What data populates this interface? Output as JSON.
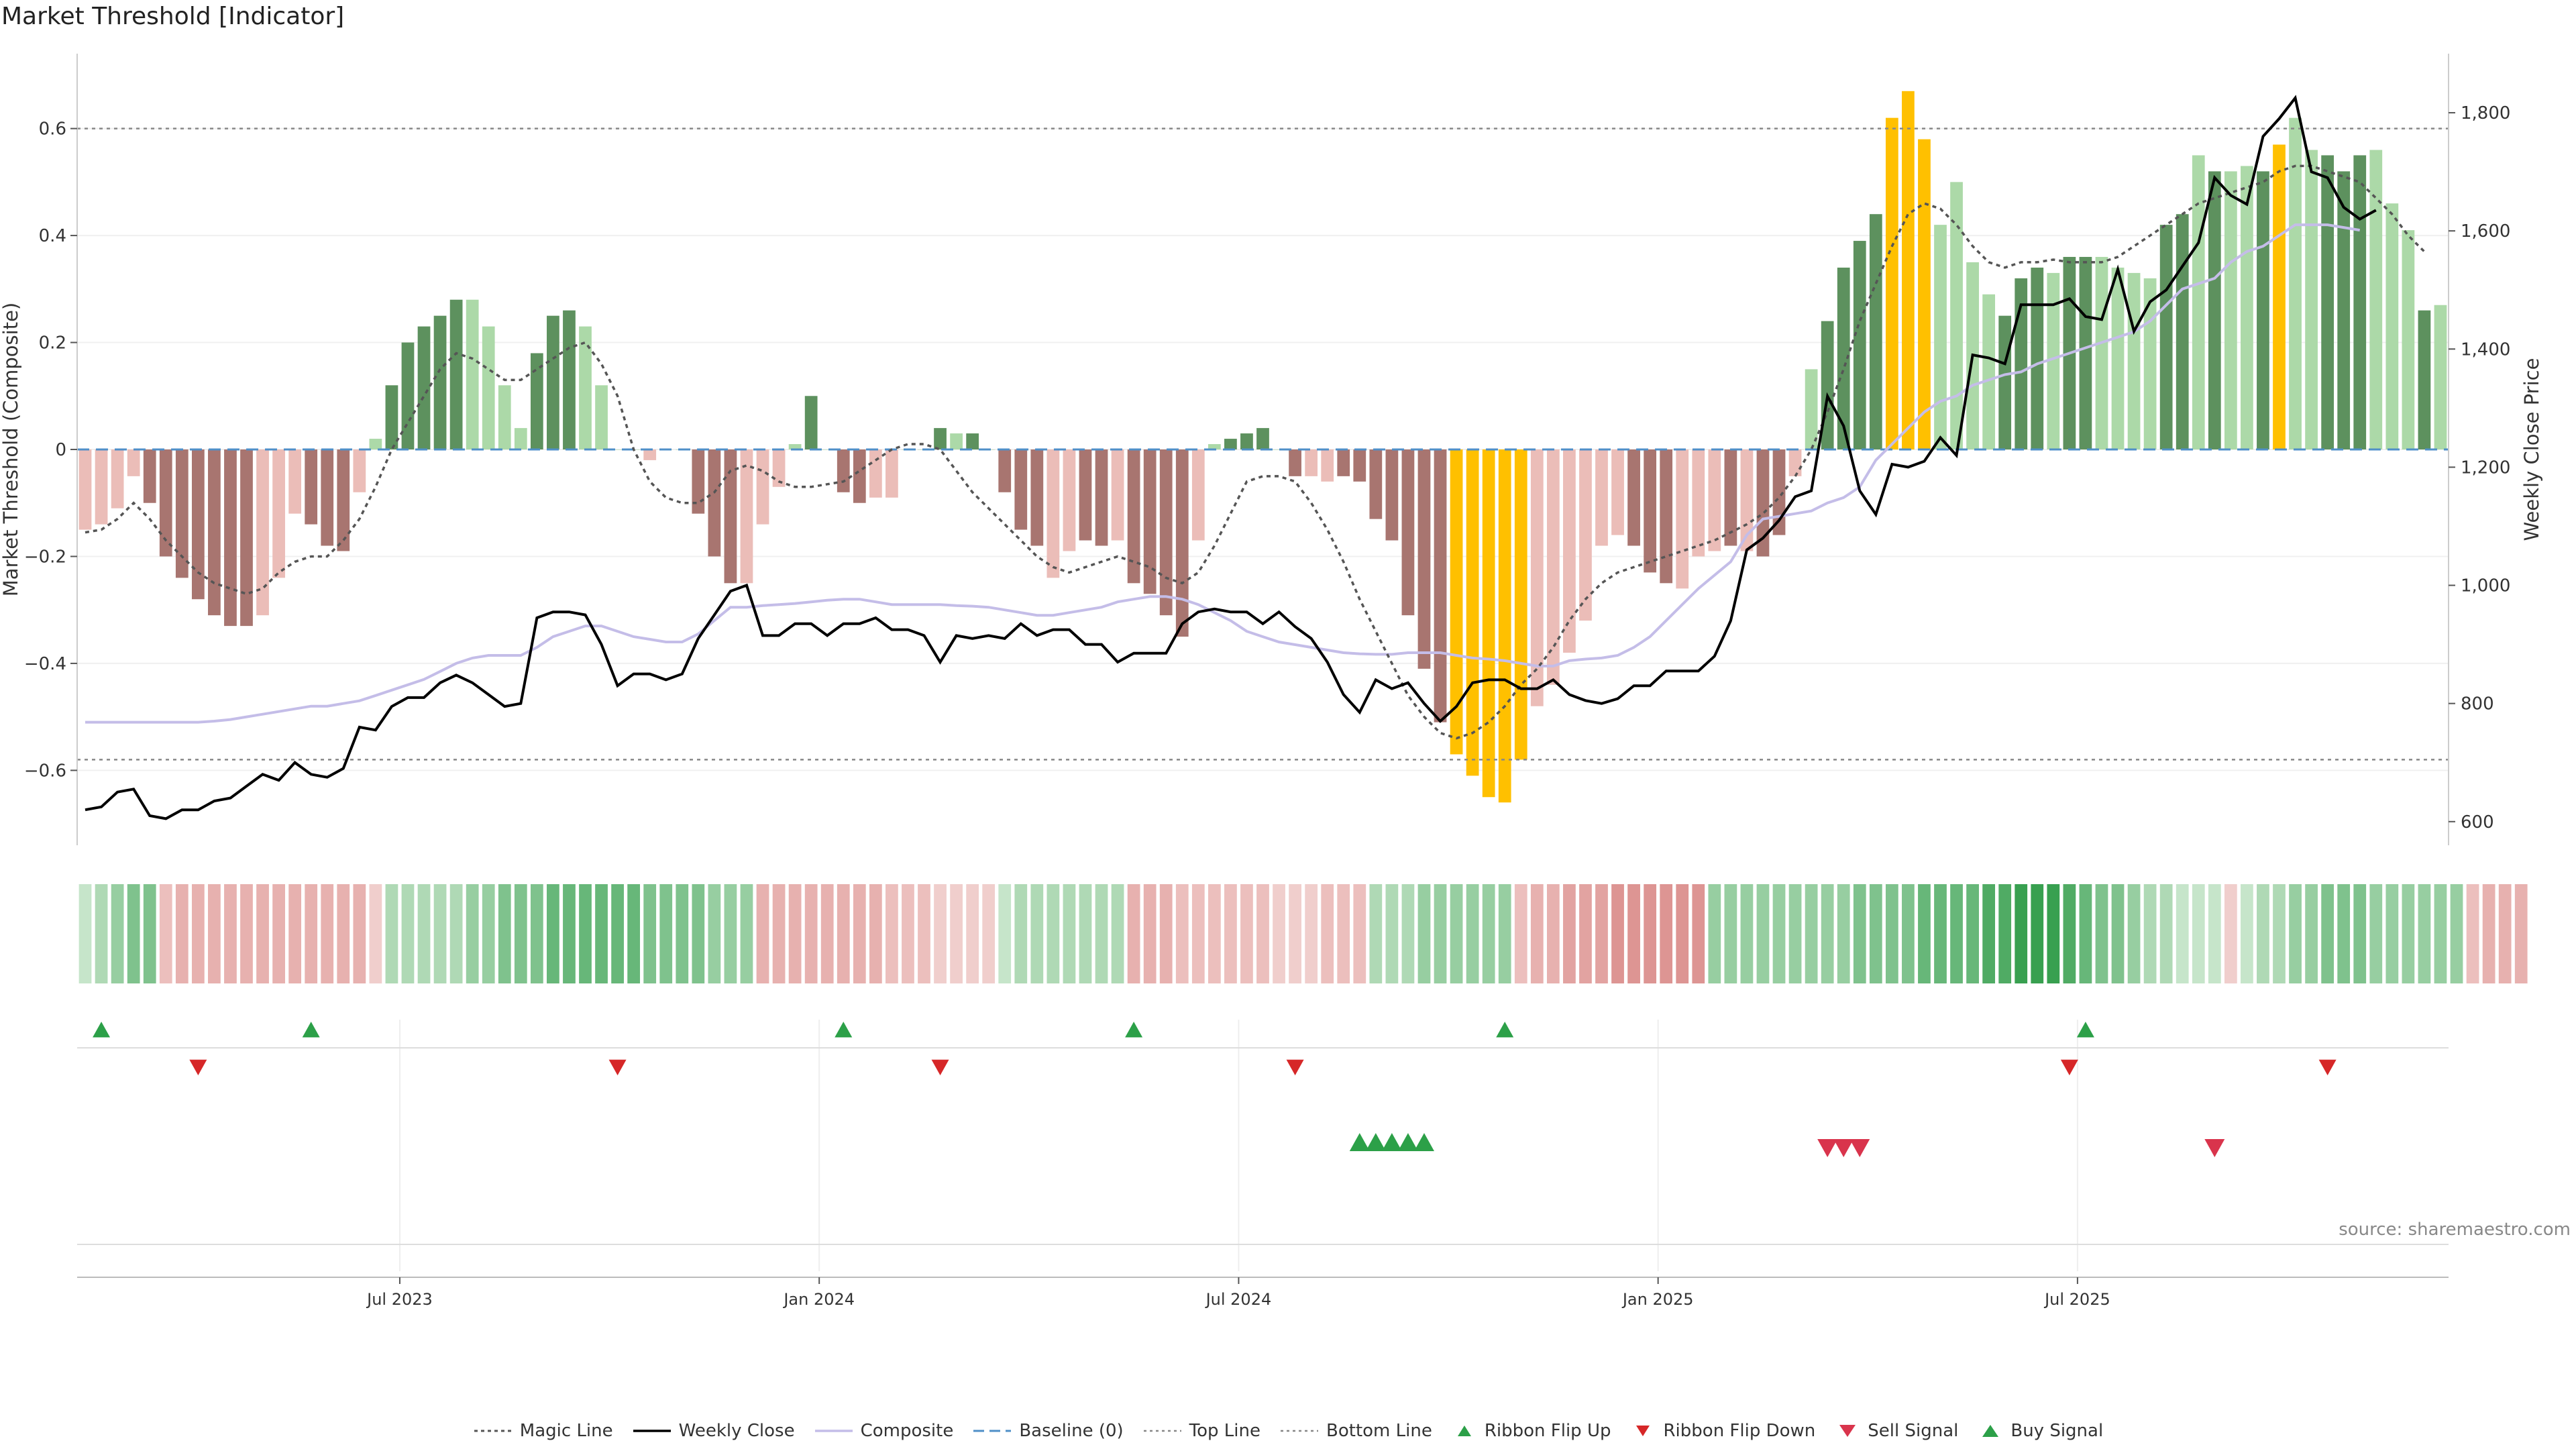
{
  "title": "Market Threshold [Indicator]",
  "source": "source: sharemaestro.com",
  "colors": {
    "bar_neg_dark": "#a87570",
    "bar_neg_light": "#ebbdb8",
    "bar_pos_dark": "#5d915e",
    "bar_pos_light": "#acd9a8",
    "bar_extreme": "#ffc000",
    "weekly_close": "#000000",
    "composite": "#c4bde8",
    "magic_line": "#555555",
    "baseline": "#4f8fc8",
    "threshold_lines": "#888888",
    "flip_up": "#2ca048",
    "flip_down": "#d62728",
    "buy": "#2ca048",
    "sell": "#d9344c"
  },
  "chart_data": {
    "type": "bar",
    "start_date": "2023-01-02",
    "interval": "weekly",
    "left_axis": {
      "label": "Market Threshold (Composite)",
      "range": [
        -0.74,
        0.74
      ],
      "ticks": [
        -0.6,
        -0.4,
        -0.2,
        0,
        0.2,
        0.4,
        0.6
      ],
      "tick_labels": [
        "−0.6",
        "−0.4",
        "−0.2",
        "0",
        "0.2",
        "0.4",
        "0.6"
      ]
    },
    "right_axis": {
      "label": "Weekly Close Price",
      "range": [
        560,
        1900
      ],
      "ticks": [
        600,
        800,
        1000,
        1200,
        1400,
        1600,
        1800
      ],
      "tick_labels": [
        "600",
        "800",
        "1,000",
        "1,200",
        "1,400",
        "1,600",
        "1,800"
      ]
    },
    "x_ticks": [
      {
        "label": "Jul 2023",
        "week": 20
      },
      {
        "label": "Jan 2024",
        "week": 46
      },
      {
        "label": "Jul 2024",
        "week": 72
      },
      {
        "label": "Jan 2025",
        "week": 98
      },
      {
        "label": "Jul 2025",
        "week": 124
      }
    ],
    "top_line": 0.6,
    "bottom_line": -0.58,
    "composite_bars": [
      -0.15,
      -0.14,
      -0.11,
      -0.05,
      -0.1,
      -0.2,
      -0.24,
      -0.28,
      -0.31,
      -0.33,
      -0.33,
      -0.31,
      -0.24,
      -0.12,
      -0.14,
      -0.18,
      -0.19,
      -0.08,
      0.02,
      0.12,
      0.2,
      0.23,
      0.25,
      0.28,
      0.28,
      0.23,
      0.12,
      0.04,
      0.18,
      0.25,
      0.26,
      0.23,
      0.12,
      0,
      0,
      -0.02,
      0,
      0,
      -0.12,
      -0.2,
      -0.25,
      -0.25,
      -0.14,
      -0.07,
      0.01,
      0.1,
      0,
      -0.08,
      -0.1,
      -0.09,
      -0.09,
      0,
      0,
      0.04,
      0.03,
      0.03,
      0,
      -0.08,
      -0.15,
      -0.18,
      -0.24,
      -0.19,
      -0.17,
      -0.18,
      -0.17,
      -0.25,
      -0.27,
      -0.31,
      -0.35,
      -0.17,
      0.01,
      0.02,
      0.03,
      0.04,
      0,
      -0.05,
      -0.05,
      -0.06,
      -0.05,
      -0.06,
      -0.13,
      -0.17,
      -0.31,
      -0.41,
      -0.51,
      -0.57,
      -0.61,
      -0.65,
      -0.66,
      -0.58,
      -0.48,
      -0.44,
      -0.38,
      -0.32,
      -0.18,
      -0.16,
      -0.18,
      -0.23,
      -0.25,
      -0.26,
      -0.2,
      -0.19,
      -0.18,
      -0.19,
      -0.2,
      -0.16,
      -0.05,
      0.15,
      0.24,
      0.34,
      0.39,
      0.44,
      0.62,
      0.67,
      0.58,
      0.42,
      0.5,
      0.35,
      0.29,
      0.25,
      0.32,
      0.34,
      0.33,
      0.36,
      0.36,
      0.36,
      0.34,
      0.33,
      0.32,
      0.42,
      0.44,
      0.55,
      0.52,
      0.52,
      0.53,
      0.52,
      0.57,
      0.62,
      0.56,
      0.55,
      0.52,
      0.55,
      0.56,
      0.46,
      0.41,
      0.26,
      0.27
    ],
    "bar_styles": [
      "nl",
      "nl",
      "nl",
      "nl",
      "nd",
      "nd",
      "nd",
      "nd",
      "nd",
      "nd",
      "nd",
      "nl",
      "nl",
      "nl",
      "nd",
      "nd",
      "nd",
      "nl",
      "pl",
      "pd",
      "pd",
      "pd",
      "pd",
      "pd",
      "pl",
      "pl",
      "pl",
      "pl",
      "pd",
      "pd",
      "pd",
      "pl",
      "pl",
      "pl",
      "pl",
      "nl",
      "pl",
      "pl",
      "nd",
      "nd",
      "nd",
      "nl",
      "nl",
      "nl",
      "pl",
      "pd",
      "pl",
      "nd",
      "nd",
      "nl",
      "nl",
      "pl",
      "pl",
      "pd",
      "pl",
      "pd",
      "pl",
      "nd",
      "nd",
      "nd",
      "nl",
      "nl",
      "nd",
      "nd",
      "nl",
      "nd",
      "nd",
      "nd",
      "nd",
      "nl",
      "pl",
      "pd",
      "pd",
      "pd",
      "pl",
      "nd",
      "nl",
      "nl",
      "nd",
      "nd",
      "nd",
      "nd",
      "nd",
      "nd",
      "nd",
      "x",
      "x",
      "x",
      "x",
      "x",
      "nl",
      "nl",
      "nl",
      "nl",
      "nl",
      "nl",
      "nd",
      "nd",
      "nd",
      "nl",
      "nl",
      "nl",
      "nd",
      "nl",
      "nd",
      "nd",
      "nl",
      "pl",
      "pd",
      "pd",
      "pd",
      "pd",
      "x",
      "x",
      "x",
      "pl",
      "pl",
      "pl",
      "pl",
      "pd",
      "pd",
      "pd",
      "pl",
      "pd",
      "pd",
      "pl",
      "pl",
      "pl",
      "pl",
      "pd",
      "pd",
      "pl",
      "pd",
      "pl",
      "pl",
      "pd",
      "x",
      "pl",
      "pl",
      "pd",
      "pd",
      "pd",
      "pl",
      "pl",
      "pl",
      "pd"
    ],
    "weekly_close": [
      620,
      625,
      650,
      655,
      610,
      605,
      620,
      620,
      635,
      640,
      660,
      680,
      670,
      700,
      680,
      675,
      690,
      760,
      755,
      795,
      810,
      810,
      835,
      848,
      835,
      815,
      795,
      800,
      945,
      955,
      955,
      950,
      900,
      830,
      850,
      850,
      840,
      850,
      910,
      950,
      990,
      1000,
      915,
      915,
      935,
      935,
      915,
      935,
      935,
      945,
      925,
      925,
      915,
      870,
      915,
      910,
      915,
      910,
      935,
      915,
      925,
      925,
      900,
      900,
      870,
      885,
      885,
      885,
      935,
      955,
      960,
      955,
      955,
      935,
      955,
      930,
      910,
      870,
      815,
      785,
      840,
      825,
      835,
      800,
      770,
      795,
      835,
      840,
      840,
      825,
      825,
      840,
      815,
      805,
      800,
      808,
      830,
      830,
      855,
      855,
      855,
      880,
      940,
      1060,
      1080,
      1110,
      1150,
      1160,
      1320,
      1270,
      1160,
      1120,
      1205,
      1200,
      1210,
      1250,
      1220,
      1390,
      1385,
      1375,
      1475,
      1475,
      1475,
      1485,
      1455,
      1450,
      1535,
      1430,
      1480,
      1500,
      1540,
      1580,
      1690,
      1660,
      1645,
      1760,
      1790,
      1825,
      1700,
      1690,
      1640,
      1620,
      1635
    ],
    "composite_line": [
      -0.51,
      -0.51,
      -0.51,
      -0.51,
      -0.51,
      -0.51,
      -0.51,
      -0.51,
      -0.508,
      -0.505,
      -0.5,
      -0.495,
      -0.49,
      -0.485,
      -0.48,
      -0.48,
      -0.475,
      -0.47,
      -0.46,
      -0.45,
      -0.44,
      -0.43,
      -0.415,
      -0.4,
      -0.39,
      -0.385,
      -0.385,
      -0.385,
      -0.37,
      -0.35,
      -0.34,
      -0.33,
      -0.33,
      -0.34,
      -0.35,
      -0.355,
      -0.36,
      -0.36,
      -0.345,
      -0.32,
      -0.295,
      -0.295,
      -0.292,
      -0.29,
      -0.288,
      -0.285,
      -0.282,
      -0.28,
      -0.28,
      -0.285,
      -0.29,
      -0.29,
      -0.29,
      -0.29,
      -0.292,
      -0.293,
      -0.295,
      -0.3,
      -0.305,
      -0.31,
      -0.31,
      -0.305,
      -0.3,
      -0.295,
      -0.285,
      -0.28,
      -0.275,
      -0.275,
      -0.28,
      -0.29,
      -0.305,
      -0.32,
      -0.34,
      -0.35,
      -0.36,
      -0.365,
      -0.37,
      -0.375,
      -0.38,
      -0.382,
      -0.383,
      -0.383,
      -0.38,
      -0.38,
      -0.38,
      -0.385,
      -0.39,
      -0.392,
      -0.395,
      -0.4,
      -0.405,
      -0.405,
      -0.395,
      -0.392,
      -0.39,
      -0.385,
      -0.37,
      -0.35,
      -0.32,
      -0.29,
      -0.26,
      -0.235,
      -0.21,
      -0.16,
      -0.13,
      -0.125,
      -0.12,
      -0.115,
      -0.1,
      -0.09,
      -0.07,
      -0.02,
      0.01,
      0.04,
      0.07,
      0.09,
      0.1,
      0.12,
      0.13,
      0.14,
      0.145,
      0.16,
      0.17,
      0.18,
      0.19,
      0.2,
      0.21,
      0.22,
      0.24,
      0.27,
      0.3,
      0.31,
      0.32,
      0.35,
      0.37,
      0.38,
      0.4,
      0.42,
      0.42,
      0.42,
      0.415,
      0.41
    ],
    "magic_line": [
      -0.155,
      -0.15,
      -0.13,
      -0.1,
      -0.13,
      -0.17,
      -0.2,
      -0.23,
      -0.25,
      -0.26,
      -0.27,
      -0.26,
      -0.23,
      -0.21,
      -0.2,
      -0.2,
      -0.17,
      -0.13,
      -0.07,
      0,
      0.05,
      0.1,
      0.15,
      0.18,
      0.17,
      0.15,
      0.13,
      0.13,
      0.15,
      0.17,
      0.19,
      0.2,
      0.16,
      0.1,
      0,
      -0.06,
      -0.09,
      -0.1,
      -0.1,
      -0.08,
      -0.04,
      -0.03,
      -0.04,
      -0.06,
      -0.07,
      -0.07,
      -0.065,
      -0.06,
      -0.04,
      -0.02,
      0,
      0.01,
      0.01,
      0,
      -0.04,
      -0.08,
      -0.11,
      -0.14,
      -0.17,
      -0.2,
      -0.22,
      -0.23,
      -0.22,
      -0.21,
      -0.2,
      -0.21,
      -0.22,
      -0.24,
      -0.25,
      -0.23,
      -0.18,
      -0.12,
      -0.06,
      -0.05,
      -0.05,
      -0.06,
      -0.1,
      -0.15,
      -0.21,
      -0.28,
      -0.34,
      -0.4,
      -0.46,
      -0.5,
      -0.53,
      -0.54,
      -0.53,
      -0.51,
      -0.48,
      -0.44,
      -0.41,
      -0.37,
      -0.32,
      -0.28,
      -0.25,
      -0.23,
      -0.22,
      -0.21,
      -0.2,
      -0.19,
      -0.18,
      -0.17,
      -0.155,
      -0.14,
      -0.12,
      -0.09,
      -0.05,
      0,
      0.07,
      0.15,
      0.24,
      0.31,
      0.38,
      0.44,
      0.46,
      0.45,
      0.42,
      0.38,
      0.35,
      0.34,
      0.35,
      0.35,
      0.355,
      0.35,
      0.35,
      0.35,
      0.36,
      0.38,
      0.4,
      0.42,
      0.44,
      0.46,
      0.47,
      0.48,
      0.49,
      0.5,
      0.52,
      0.53,
      0.53,
      0.52,
      0.51,
      0.5,
      0.47,
      0.44,
      0.4,
      0.37
    ],
    "ribbon_strength": [
      1,
      2,
      3,
      4,
      4,
      -2,
      -3,
      -3,
      -3,
      -3,
      -3,
      -3,
      -3,
      -3,
      -3,
      -3,
      -3,
      -3,
      -1,
      2,
      2,
      2,
      2,
      2,
      3,
      3,
      4,
      4,
      4,
      5,
      5,
      5,
      5,
      5,
      5,
      4,
      4,
      4,
      4,
      3,
      3,
      3,
      -3,
      -3,
      -3,
      -3,
      -3,
      -3,
      -3,
      -3,
      -2,
      -2,
      -2,
      -1,
      -1,
      -1,
      -1,
      1,
      2,
      2,
      2,
      2,
      2,
      2,
      2,
      -3,
      -3,
      -3,
      -2,
      -2,
      -2,
      -2,
      -2,
      -2,
      -1,
      -1,
      -1,
      -2,
      -2,
      -2,
      2,
      2,
      2,
      3,
      3,
      3,
      3,
      3,
      3,
      -2,
      -3,
      -3,
      -4,
      -4,
      -4,
      -5,
      -5,
      -5,
      -5,
      -5,
      -5,
      3,
      3,
      3,
      3,
      3,
      3,
      3,
      3,
      3,
      4,
      4,
      4,
      4,
      5,
      5,
      5,
      5,
      6,
      6,
      7,
      7,
      7,
      6,
      5,
      4,
      4,
      3,
      2,
      2,
      1,
      1,
      1,
      -1,
      1,
      2,
      2,
      3,
      3,
      4,
      4,
      4,
      3,
      3,
      3,
      3,
      3,
      3,
      -2,
      -3,
      -3,
      -3
    ],
    "ribbon_flip_up": [
      1,
      14,
      47,
      65,
      88,
      124
    ],
    "ribbon_flip_down": [
      7,
      33,
      53,
      75,
      123,
      139
    ],
    "buy_signals": [
      79,
      80,
      81,
      82,
      83
    ],
    "sell_signals": [
      108,
      109,
      110,
      132
    ]
  },
  "legend": [
    {
      "key": "magic",
      "label": "Magic Line"
    },
    {
      "key": "weekly",
      "label": "Weekly Close"
    },
    {
      "key": "composite",
      "label": "Composite"
    },
    {
      "key": "baseline",
      "label": "Baseline (0)"
    },
    {
      "key": "top",
      "label": "Top Line"
    },
    {
      "key": "bottom",
      "label": "Bottom Line"
    },
    {
      "key": "flipup",
      "label": "Ribbon Flip Up"
    },
    {
      "key": "flipdown",
      "label": "Ribbon Flip Down"
    },
    {
      "key": "sell",
      "label": "Sell Signal"
    },
    {
      "key": "buy",
      "label": "Buy Signal"
    }
  ]
}
